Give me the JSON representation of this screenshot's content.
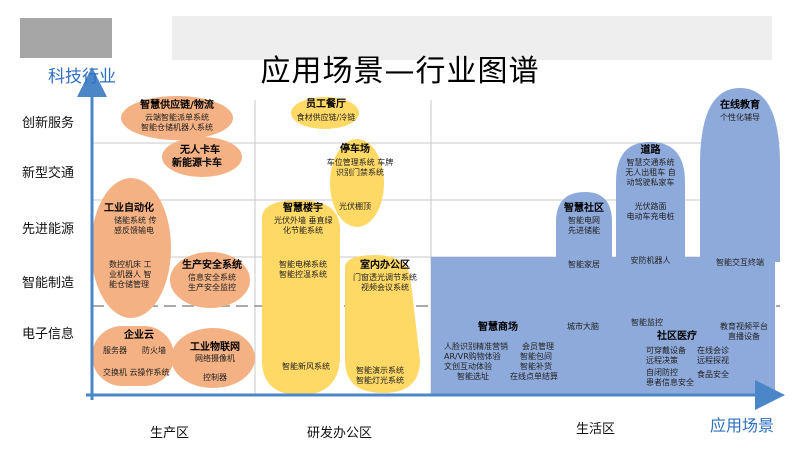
{
  "header": {
    "title": "应用场景—行业图谱"
  },
  "axes": {
    "y_title": "科技行业",
    "x_title": "应用场景"
  },
  "rows": [
    "创新服务",
    "新型交通",
    "先进能源",
    "智能制造",
    "电子信息"
  ],
  "zones": [
    "生产区",
    "研发办公区",
    "生活区"
  ],
  "colors": {
    "orange": "#f4b183",
    "yellow": "#ffd966",
    "blue": "#8eaadb",
    "axis": "#4a86c8",
    "title_blue": "#2e6fc0"
  },
  "clusters": {
    "supply_chain": {
      "title": "智慧供应链/物流",
      "lines": [
        "云端智能派单系统",
        "智能仓储机器人系统"
      ]
    },
    "cafeteria": {
      "title": "员工餐厅",
      "lines": [
        "食材供应链/冷链"
      ]
    },
    "truck": {
      "title_1": "无人卡车",
      "title_2": "新能源卡车"
    },
    "parking": {
      "title": "停车场",
      "lines": [
        "车位管理系统 车牌",
        "识别门禁系统"
      ],
      "extra": "光伏棚顶"
    },
    "automation": {
      "title": "工业自动化",
      "lines": [
        "储能系统 传",
        "感反馈输电"
      ],
      "extra": [
        "数控机床 工",
        "业机器人 智",
        "能仓储管理"
      ]
    },
    "safety": {
      "title": "生产安全系统",
      "lines": [
        "信息安全系统",
        "生产安全监控"
      ]
    },
    "building": {
      "title": "智慧楼宇",
      "lines": [
        "光伏外墙 垂直绿",
        "化节能系统"
      ],
      "extra": [
        "智能电梯系统",
        "智能控温系统"
      ],
      "bottom": "智能新风系统"
    },
    "office": {
      "title": "室内办公区",
      "lines": [
        "门窗透光调节系统",
        "视频会议系统"
      ],
      "bottom": [
        "智能演示系统",
        "智能灯光系统"
      ]
    },
    "cloud": {
      "title": "企业云",
      "lines": [
        "服务器",
        "防火墙"
      ],
      "extra": "交换机 云操作系统"
    },
    "iot": {
      "title": "工业物联网",
      "lines": [
        "网络摄像机"
      ],
      "extra": "控制器"
    },
    "community": {
      "title": "智慧社区",
      "lines": [
        "智能电网",
        "先进储能"
      ],
      "extra": "智能家居"
    },
    "road": {
      "title": "道路",
      "lines": [
        "智慧交通系统",
        "无人出租车 自",
        "动驾驶私家车"
      ],
      "extra": [
        "光伏路面",
        "电动车充电桩"
      ],
      "bottom": "安防机器人"
    },
    "education": {
      "title": "在线教育",
      "lines": [
        "个性化辅导"
      ],
      "extra": "智能交互终端"
    },
    "mall": {
      "title": "智慧商场",
      "lines": [
        "人脸识别精准营销",
        "AR/VR购物体验",
        "文创互动体验",
        "智能选址"
      ],
      "right": [
        "会员管理",
        "智能包间",
        "智能补货",
        "在线点单结算"
      ]
    },
    "city": {
      "label": "城市大脑"
    },
    "medical": {
      "title": "社区医疗",
      "top": "智能监控",
      "lines": [
        "可穿戴设备",
        "远程决策",
        "自闭防控",
        "患者信息安全"
      ],
      "right": [
        "在线会诊",
        "远程探视",
        "食品安全"
      ],
      "far": [
        "教育视频平台",
        "直播设备"
      ]
    }
  }
}
